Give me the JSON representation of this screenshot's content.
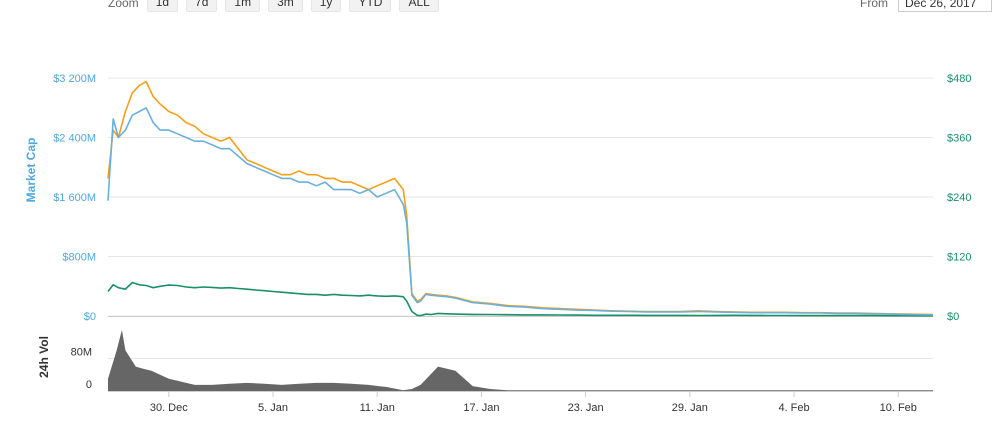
{
  "toolbar": {
    "zoom_label": "Zoom",
    "zoom_buttons": [
      "1d",
      "7d",
      "1m",
      "3m",
      "1y",
      "YTD",
      "ALL"
    ],
    "from_label": "From",
    "from_value": "Dec 26, 2017"
  },
  "chart_data": {
    "type": "line",
    "x_tick_labels": [
      "30. Dec",
      "5. Jan",
      "11. Jan",
      "17. Jan",
      "23. Jan",
      "29. Jan",
      "4. Feb",
      "10. Feb"
    ],
    "left_axis": {
      "title": "Market Cap",
      "tick_labels": [
        "$0",
        "$800M",
        "$1 600M",
        "$2 400M",
        "$3 200M"
      ],
      "ylim": [
        0,
        3200
      ]
    },
    "right_axis": {
      "tick_labels": [
        "$0",
        "$120",
        "$240",
        "$360",
        "$480"
      ],
      "ylim": [
        0,
        480
      ]
    },
    "volume_axis": {
      "title": "24h Vol",
      "tick_labels": [
        "0",
        "80M"
      ]
    },
    "series": [
      {
        "color": "#1a8f6a",
        "x": [
          0,
          0.3,
          0.6,
          1,
          1.4,
          1.8,
          2.2,
          2.6,
          3,
          3.5,
          4,
          4.5,
          5,
          5.5,
          6,
          6.5,
          7,
          7.5,
          8,
          8.5,
          9,
          9.5,
          10,
          10.5,
          11,
          11.5,
          12,
          12.5,
          13,
          13.5,
          14,
          14.5,
          15,
          15.5,
          16,
          16.5,
          17,
          17.2,
          17.5,
          17.8,
          18,
          18.3,
          18.6,
          19,
          19.5,
          20,
          21,
          22,
          23,
          24,
          25,
          26,
          27,
          28,
          29,
          30,
          31,
          32,
          33,
          34,
          35,
          36,
          37,
          38,
          39,
          40,
          41,
          42,
          43,
          44,
          45,
          46,
          47.5
        ],
        "values": [
          330,
          420,
          380,
          360,
          450,
          420,
          410,
          380,
          400,
          415,
          410,
          390,
          380,
          390,
          385,
          375,
          380,
          370,
          360,
          350,
          340,
          330,
          320,
          310,
          300,
          290,
          290,
          280,
          290,
          280,
          275,
          270,
          280,
          270,
          265,
          270,
          260,
          200,
          60,
          10,
          5,
          25,
          20,
          35,
          30,
          25,
          22,
          20,
          18,
          15,
          15,
          13,
          12,
          10,
          10,
          9,
          8,
          8,
          8,
          7,
          8,
          9,
          8,
          7,
          7,
          6,
          6,
          6,
          5,
          5,
          4,
          4,
          3
        ]
      },
      {
        "color": "#f59f19",
        "x": [
          0,
          0.3,
          0.6,
          1,
          1.4,
          1.8,
          2.2,
          2.6,
          3,
          3.5,
          4,
          4.5,
          5,
          5.5,
          6,
          6.5,
          7,
          7.5,
          8,
          8.5,
          9,
          9.5,
          10,
          10.5,
          11,
          11.5,
          12,
          12.5,
          13,
          13.5,
          14,
          14.5,
          15,
          15.5,
          16,
          16.5,
          17,
          17.2,
          17.5,
          17.8,
          18,
          18.3,
          18.6,
          19,
          19.5,
          20,
          21,
          22,
          23,
          24,
          25,
          26,
          27,
          28,
          29,
          30,
          31,
          32,
          33,
          34,
          35,
          36,
          37,
          38,
          39,
          40,
          41,
          42,
          43,
          44,
          45,
          46,
          47.5
        ],
        "values": [
          1850,
          2500,
          2400,
          2750,
          3000,
          3100,
          3150,
          2950,
          2850,
          2750,
          2700,
          2600,
          2550,
          2450,
          2400,
          2350,
          2400,
          2250,
          2100,
          2050,
          2000,
          1950,
          1900,
          1900,
          1950,
          1900,
          1900,
          1850,
          1850,
          1800,
          1800,
          1750,
          1700,
          1750,
          1800,
          1850,
          1700,
          1350,
          300,
          200,
          220,
          300,
          290,
          280,
          270,
          250,
          190,
          170,
          140,
          130,
          110,
          100,
          90,
          80,
          70,
          65,
          60,
          60,
          60,
          70,
          60,
          55,
          50,
          50,
          50,
          45,
          45,
          40,
          40,
          35,
          30,
          25,
          20
        ]
      },
      {
        "color": "#6ab0db",
        "x": [
          0,
          0.3,
          0.6,
          1,
          1.4,
          1.8,
          2.2,
          2.6,
          3,
          3.5,
          4,
          4.5,
          5,
          5.5,
          6,
          6.5,
          7,
          7.5,
          8,
          8.5,
          9,
          9.5,
          10,
          10.5,
          11,
          11.5,
          12,
          12.5,
          13,
          13.5,
          14,
          14.5,
          15,
          15.5,
          16,
          16.5,
          17,
          17.2,
          17.5,
          17.8,
          18,
          18.3,
          18.6,
          19,
          19.5,
          20,
          21,
          22,
          23,
          24,
          25,
          26,
          27,
          28,
          29,
          30,
          31,
          32,
          33,
          34,
          35,
          36,
          37,
          38,
          39,
          40,
          41,
          42,
          43,
          44,
          45,
          46,
          47.5
        ],
        "values": [
          1550,
          2650,
          2400,
          2500,
          2700,
          2750,
          2800,
          2600,
          2500,
          2500,
          2450,
          2400,
          2350,
          2350,
          2300,
          2250,
          2250,
          2150,
          2050,
          2000,
          1950,
          1900,
          1850,
          1850,
          1800,
          1800,
          1750,
          1800,
          1700,
          1700,
          1700,
          1650,
          1700,
          1600,
          1650,
          1700,
          1500,
          1250,
          280,
          180,
          200,
          290,
          280,
          270,
          260,
          240,
          180,
          160,
          130,
          120,
          100,
          90,
          80,
          75,
          65,
          60,
          55,
          55,
          55,
          60,
          55,
          50,
          45,
          45,
          45,
          40,
          40,
          35,
          35,
          30,
          25,
          20,
          15
        ]
      }
    ],
    "volume": {
      "color": "#666666",
      "x": [
        0,
        0.5,
        0.8,
        1,
        1.3,
        1.6,
        2,
        2.5,
        3,
        3.5,
        4,
        5,
        6,
        7,
        8,
        9,
        10,
        11,
        12,
        13,
        14,
        15,
        16,
        17,
        17.5,
        18,
        19,
        20,
        21,
        22,
        23,
        24,
        25,
        30,
        35,
        40,
        45,
        47.5
      ],
      "values": [
        30,
        100,
        150,
        100,
        80,
        60,
        55,
        50,
        40,
        30,
        25,
        15,
        15,
        18,
        20,
        18,
        15,
        18,
        20,
        20,
        18,
        15,
        10,
        2,
        5,
        15,
        60,
        50,
        12,
        5,
        2,
        2,
        2,
        2,
        2,
        2,
        2,
        2
      ]
    }
  }
}
